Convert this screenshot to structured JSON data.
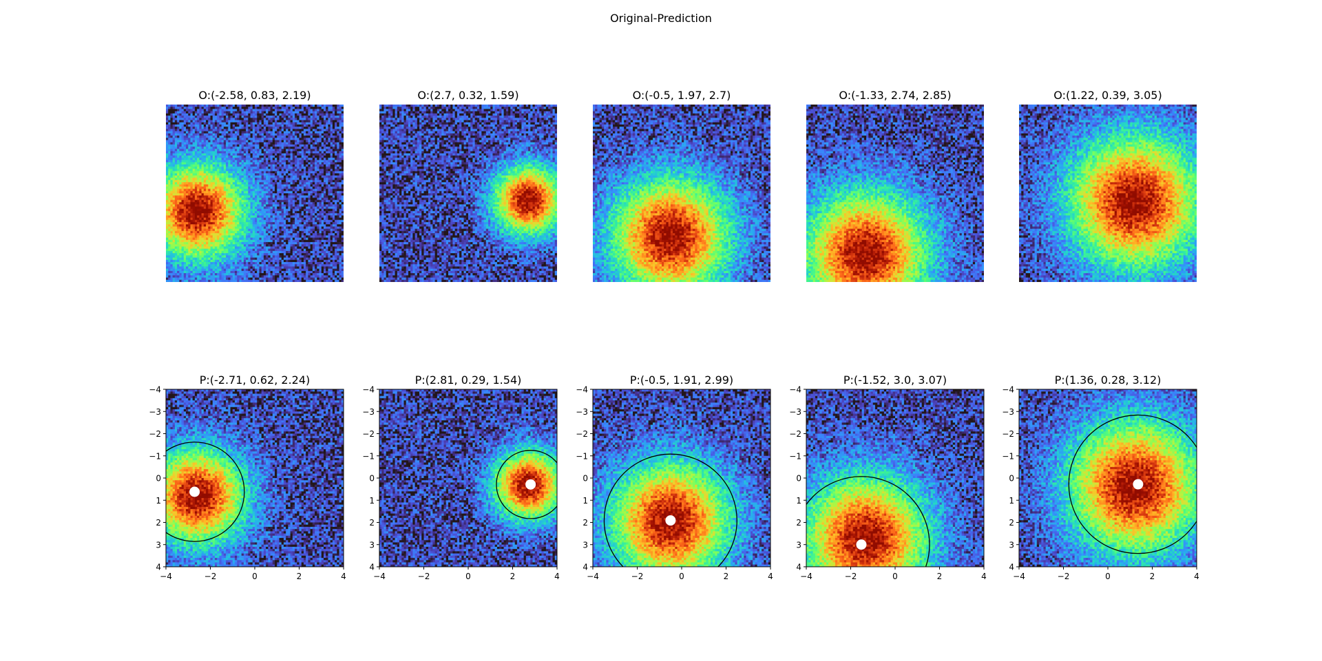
{
  "figure": {
    "title": "Original-Prediction"
  },
  "chart_data": [
    {
      "type": "heatmap",
      "row": "original",
      "title": "O:(-2.58, 0.83, 2.19)",
      "params": {
        "x": -2.58,
        "y": 0.83,
        "r": 2.19
      }
    },
    {
      "type": "heatmap",
      "row": "original",
      "title": "O:(2.7, 0.32, 1.59)",
      "params": {
        "x": 2.7,
        "y": 0.32,
        "r": 1.59
      }
    },
    {
      "type": "heatmap",
      "row": "original",
      "title": "O:(-0.5, 1.97, 2.7)",
      "params": {
        "x": -0.5,
        "y": 1.97,
        "r": 2.7
      }
    },
    {
      "type": "heatmap",
      "row": "original",
      "title": "O:(-1.33, 2.74, 2.85)",
      "params": {
        "x": -1.33,
        "y": 2.74,
        "r": 2.85
      }
    },
    {
      "type": "heatmap",
      "row": "original",
      "title": "O:(1.22, 0.39, 3.05)",
      "params": {
        "x": 1.22,
        "y": 0.39,
        "r": 3.05
      }
    },
    {
      "type": "heatmap",
      "row": "prediction",
      "title": "P:(-2.71, 0.62, 2.24)",
      "params": {
        "x": -2.71,
        "y": 0.62,
        "r": 2.24
      },
      "image_params": {
        "x": -2.58,
        "y": 0.83,
        "r": 2.19
      },
      "xlim": [
        -4,
        4
      ],
      "ylim": [
        4,
        -4
      ],
      "xticks": [
        -4,
        -2,
        0,
        2,
        4
      ],
      "yticks": [
        -4,
        -3,
        -2,
        -1,
        0,
        1,
        2,
        3,
        4
      ],
      "marker": {
        "x": -2.71,
        "y": 0.62
      },
      "circle": {
        "cx": -2.71,
        "cy": 0.62,
        "r": 2.24
      }
    },
    {
      "type": "heatmap",
      "row": "prediction",
      "title": "P:(2.81, 0.29, 1.54)",
      "params": {
        "x": 2.81,
        "y": 0.29,
        "r": 1.54
      },
      "image_params": {
        "x": 2.7,
        "y": 0.32,
        "r": 1.59
      },
      "xlim": [
        -4,
        4
      ],
      "ylim": [
        4,
        -4
      ],
      "xticks": [
        -4,
        -2,
        0,
        2,
        4
      ],
      "yticks": [
        -4,
        -3,
        -2,
        -1,
        0,
        1,
        2,
        3,
        4
      ],
      "marker": {
        "x": 2.81,
        "y": 0.29
      },
      "circle": {
        "cx": 2.81,
        "cy": 0.29,
        "r": 1.54
      }
    },
    {
      "type": "heatmap",
      "row": "prediction",
      "title": "P:(-0.5, 1.91, 2.99)",
      "params": {
        "x": -0.5,
        "y": 1.91,
        "r": 2.99
      },
      "image_params": {
        "x": -0.5,
        "y": 1.97,
        "r": 2.7
      },
      "xlim": [
        -4,
        4
      ],
      "ylim": [
        4,
        -4
      ],
      "xticks": [
        -4,
        -2,
        0,
        2,
        4
      ],
      "yticks": [
        -4,
        -3,
        -2,
        -1,
        0,
        1,
        2,
        3,
        4
      ],
      "marker": {
        "x": -0.5,
        "y": 1.91
      },
      "circle": {
        "cx": -0.5,
        "cy": 1.91,
        "r": 2.99
      }
    },
    {
      "type": "heatmap",
      "row": "prediction",
      "title": "P:(-1.52, 3.0, 3.07)",
      "params": {
        "x": -1.52,
        "y": 3.0,
        "r": 3.07
      },
      "image_params": {
        "x": -1.33,
        "y": 2.74,
        "r": 2.85
      },
      "xlim": [
        -4,
        4
      ],
      "ylim": [
        4,
        -4
      ],
      "xticks": [
        -4,
        -2,
        0,
        2,
        4
      ],
      "yticks": [
        -4,
        -3,
        -2,
        -1,
        0,
        1,
        2,
        3,
        4
      ],
      "marker": {
        "x": -1.52,
        "y": 3.0
      },
      "circle": {
        "cx": -1.52,
        "cy": 3.0,
        "r": 3.07
      }
    },
    {
      "type": "heatmap",
      "row": "prediction",
      "title": "P:(1.36, 0.28, 3.12)",
      "params": {
        "x": 1.36,
        "y": 0.28,
        "r": 3.12
      },
      "image_params": {
        "x": 1.22,
        "y": 0.39,
        "r": 3.05
      },
      "xlim": [
        -4,
        4
      ],
      "ylim": [
        4,
        -4
      ],
      "xticks": [
        -4,
        -2,
        0,
        2,
        4
      ],
      "yticks": [
        -4,
        -3,
        -2,
        -1,
        0,
        1,
        2,
        3,
        4
      ],
      "marker": {
        "x": 1.36,
        "y": 0.28
      },
      "circle": {
        "cx": 1.36,
        "cy": 0.28,
        "r": 3.12
      }
    }
  ],
  "colormap": "turbo",
  "colors": {
    "circle": "#000000",
    "marker": "#ffffff"
  }
}
